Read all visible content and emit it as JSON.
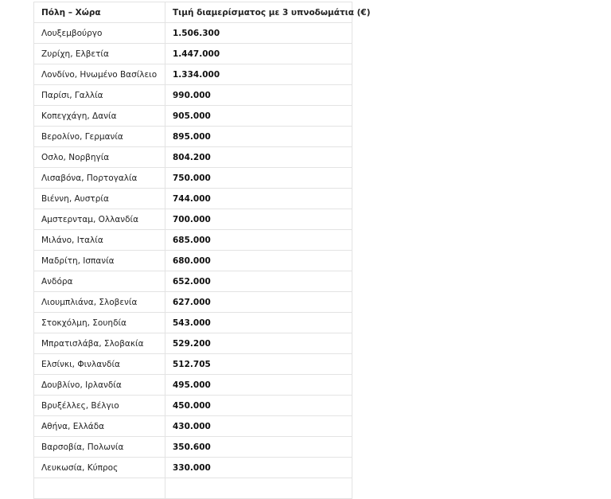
{
  "table": {
    "headers": [
      "Πόλη – Χώρα",
      "Τιμή διαμερίσματος με 3 υπνοδωμάτια (€)"
    ],
    "rows": [
      [
        "Λουξεμβούργο",
        "1.506.300"
      ],
      [
        "Ζυρίχη, Ελβετία",
        "1.447.000"
      ],
      [
        "Λονδίνο, Ηνωμένο Βασίλειο",
        "1.334.000"
      ],
      [
        "Παρίσι, Γαλλία",
        "990.000"
      ],
      [
        "Κοπεγχάγη, Δανία",
        "905.000"
      ],
      [
        "Βερολίνο, Γερμανία",
        "895.000"
      ],
      [
        "Οσλο, Νορβηγία",
        "804.200"
      ],
      [
        "Λισαβόνα, Πορτογαλία",
        "750.000"
      ],
      [
        "Βιέννη, Αυστρία",
        "744.000"
      ],
      [
        "Αμστερνταμ, Ολλανδία",
        "700.000"
      ],
      [
        "Μιλάνο, Ιταλία",
        "685.000"
      ],
      [
        "Μαδρίτη, Ισπανία",
        "680.000"
      ],
      [
        "Ανδόρα",
        "652.000"
      ],
      [
        "Λιουμπλιάνα, Σλοβενία",
        "627.000"
      ],
      [
        "Στοκχόλμη, Σουηδία",
        "543.000"
      ],
      [
        "Μπρατισλάβα, Σλοβακία",
        "529.200"
      ],
      [
        "Ελσίνκι, Φινλανδία",
        "512.705"
      ],
      [
        "Δουβλίνο, Ιρλανδία",
        "495.000"
      ],
      [
        "Βρυξέλλες, Βέλγιο",
        "450.000"
      ],
      [
        "Αθήνα, Ελλάδα",
        "430.000"
      ],
      [
        "Βαρσοβία, Πολωνία",
        "350.600"
      ],
      [
        "Λευκωσία, Κύπρος",
        "330.000"
      ]
    ]
  }
}
